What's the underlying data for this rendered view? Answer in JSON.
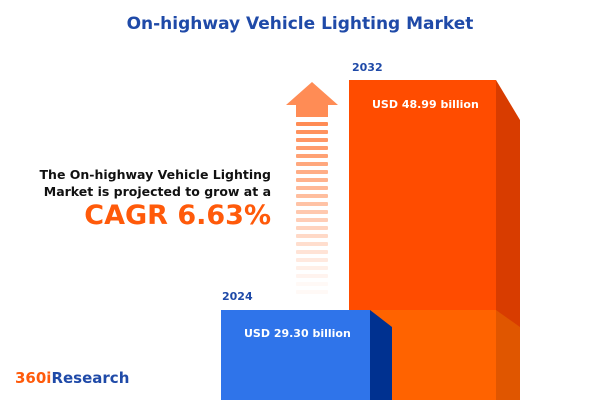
{
  "title": "On-highway Vehicle Lighting Market",
  "headline": {
    "line1": "The On-highway Vehicle Lighting",
    "line2": "Market is projected to grow at a",
    "cagr": "CAGR 6.63%"
  },
  "logo": {
    "part1": "360i",
    "part2": "Research"
  },
  "colors": {
    "bar_2024": "#2f74ea",
    "bar_2032": "#ff4c00",
    "title": "#1f4aa8",
    "accent": "#ff5a0a"
  },
  "chart_data": {
    "type": "bar",
    "title": "On-highway Vehicle Lighting Market",
    "categories": [
      "2024",
      "2032"
    ],
    "values": [
      29.3,
      48.99
    ],
    "unit": "USD billion",
    "data_labels": [
      "USD 29.30 billion",
      "USD 48.99 billion"
    ],
    "cagr": "6.63%"
  }
}
